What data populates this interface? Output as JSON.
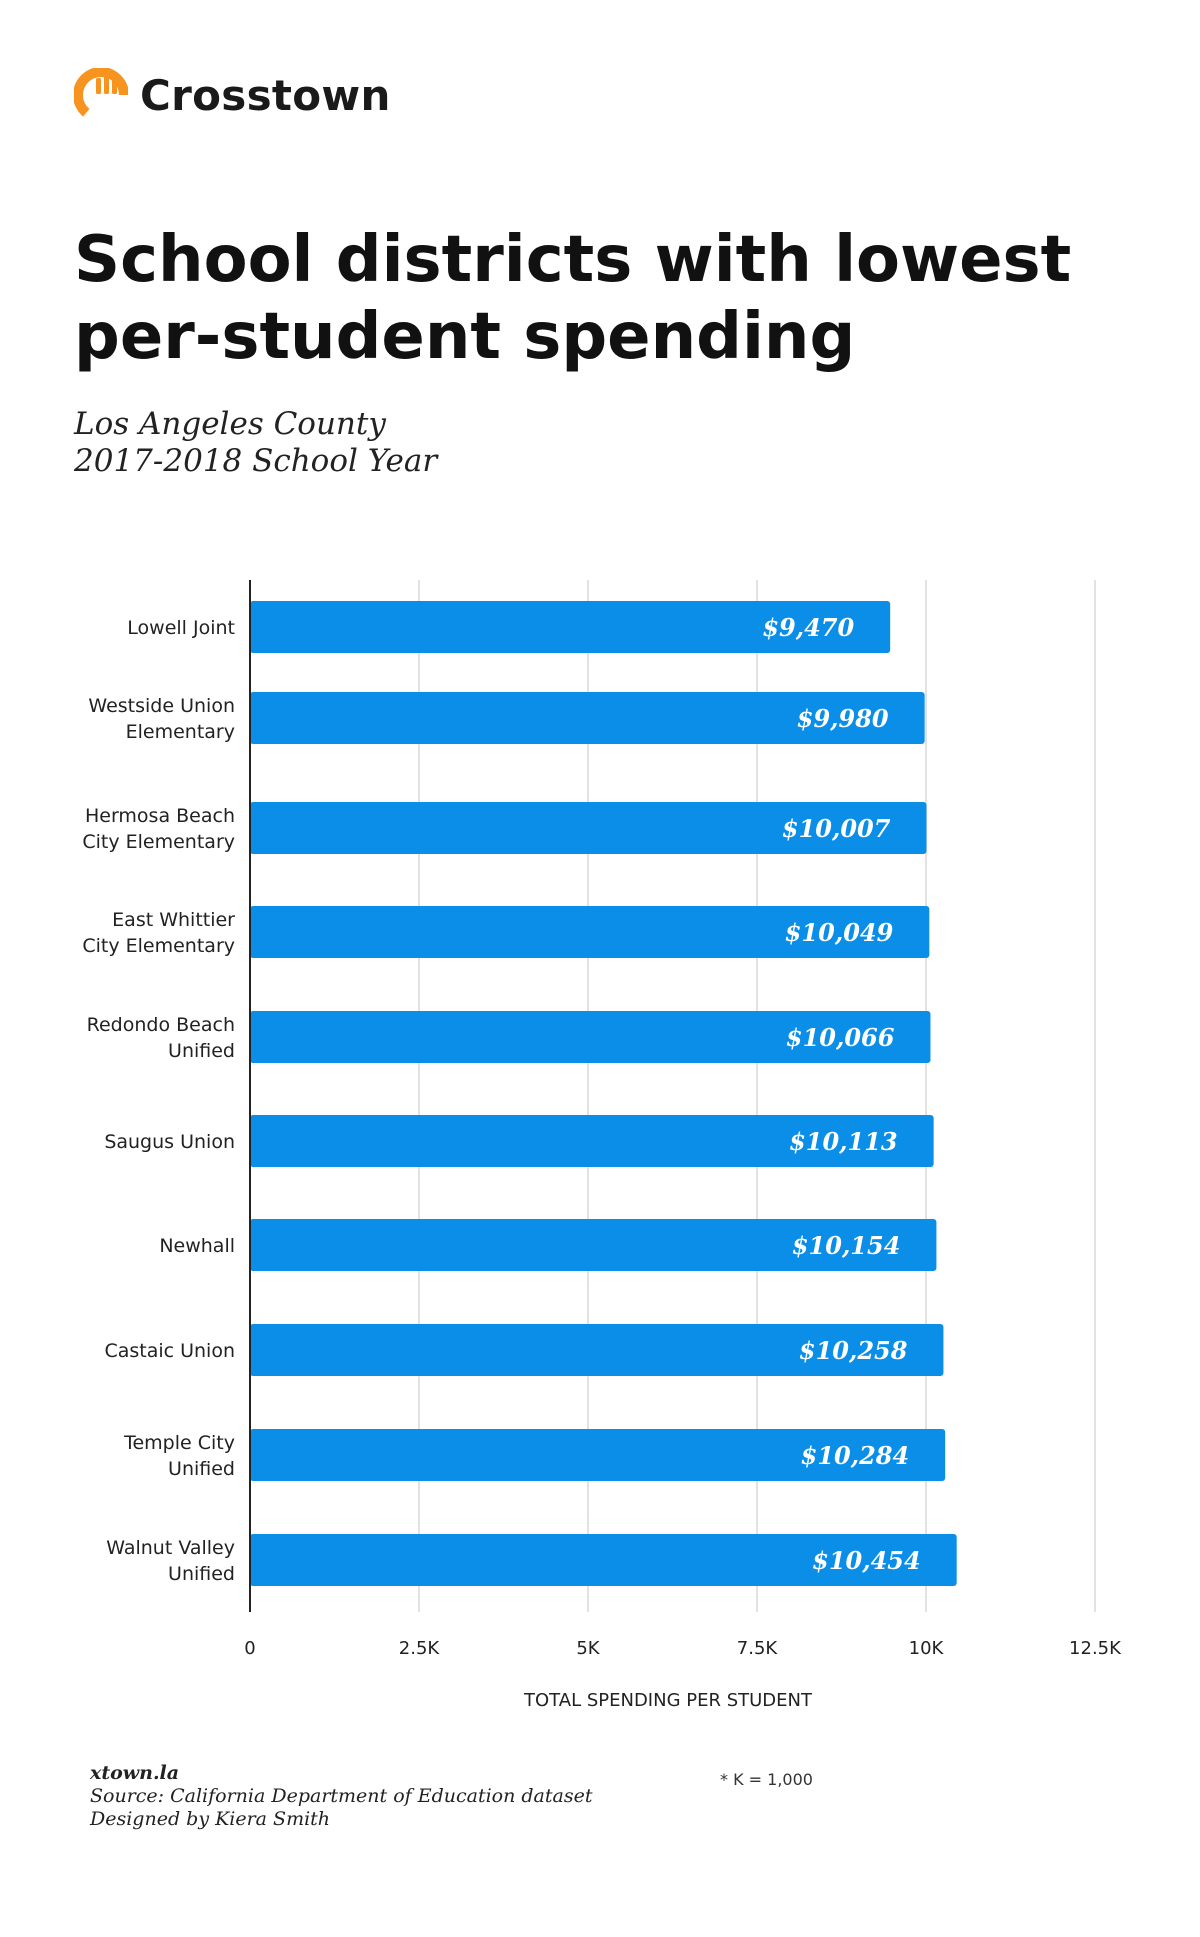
{
  "brand": {
    "name": "Crosstown",
    "logo_icon": "crosstown-c-logo-icon",
    "logo_color": "#f79420"
  },
  "title": "School districts with lowest per-student spending",
  "subtitle": {
    "line1": "Los Angeles County",
    "line2": "2017-2018 School Year"
  },
  "chart_data": {
    "type": "bar",
    "orientation": "horizontal",
    "categories": [
      "Lowell Joint",
      "Westside Union Elementary",
      "Hermosa Beach City Elementary",
      "East Whittier City Elementary",
      "Redondo Beach Unified",
      "Saugus Union",
      "Newhall",
      "Castaic Union",
      "Temple City Unified",
      "Walnut Valley Unified"
    ],
    "category_lines": [
      [
        "Lowell Joint"
      ],
      [
        "Westside Union",
        "Elementary"
      ],
      [
        "Hermosa Beach",
        "City Elementary"
      ],
      [
        "East Whittier",
        "City Elementary"
      ],
      [
        "Redondo Beach",
        "Unified"
      ],
      [
        "Saugus Union"
      ],
      [
        "Newhall"
      ],
      [
        "Castaic Union"
      ],
      [
        "Temple City",
        "Unified"
      ],
      [
        "Walnut Valley",
        "Unified"
      ]
    ],
    "values": [
      9470,
      9980,
      10007,
      10049,
      10066,
      10113,
      10154,
      10258,
      10284,
      10454
    ],
    "value_labels": [
      "$9,470",
      "$9,980",
      "$10,007",
      "$10,049",
      "$10,066",
      "$10,113",
      "$10,154",
      "$10,258",
      "$10,284",
      "$10,454"
    ],
    "xlabel": "TOTAL SPENDING PER STUDENT",
    "ylabel": "",
    "xlim": [
      0,
      12500
    ],
    "ticks": [
      0,
      2500,
      5000,
      7500,
      10000,
      12500
    ],
    "tick_labels": [
      "0",
      "2.5K",
      "5K",
      "7.5K",
      "10K",
      "12.5K"
    ],
    "grid": true,
    "bar_color": "#0b8ee8",
    "label_color": "#ffffff",
    "grid_color": "#d9d9d9"
  },
  "footer": {
    "site": "xtown.la",
    "source": "Source: California Department of Education dataset",
    "credit": "Designed by Kiera Smith",
    "note": "* K = 1,000"
  }
}
